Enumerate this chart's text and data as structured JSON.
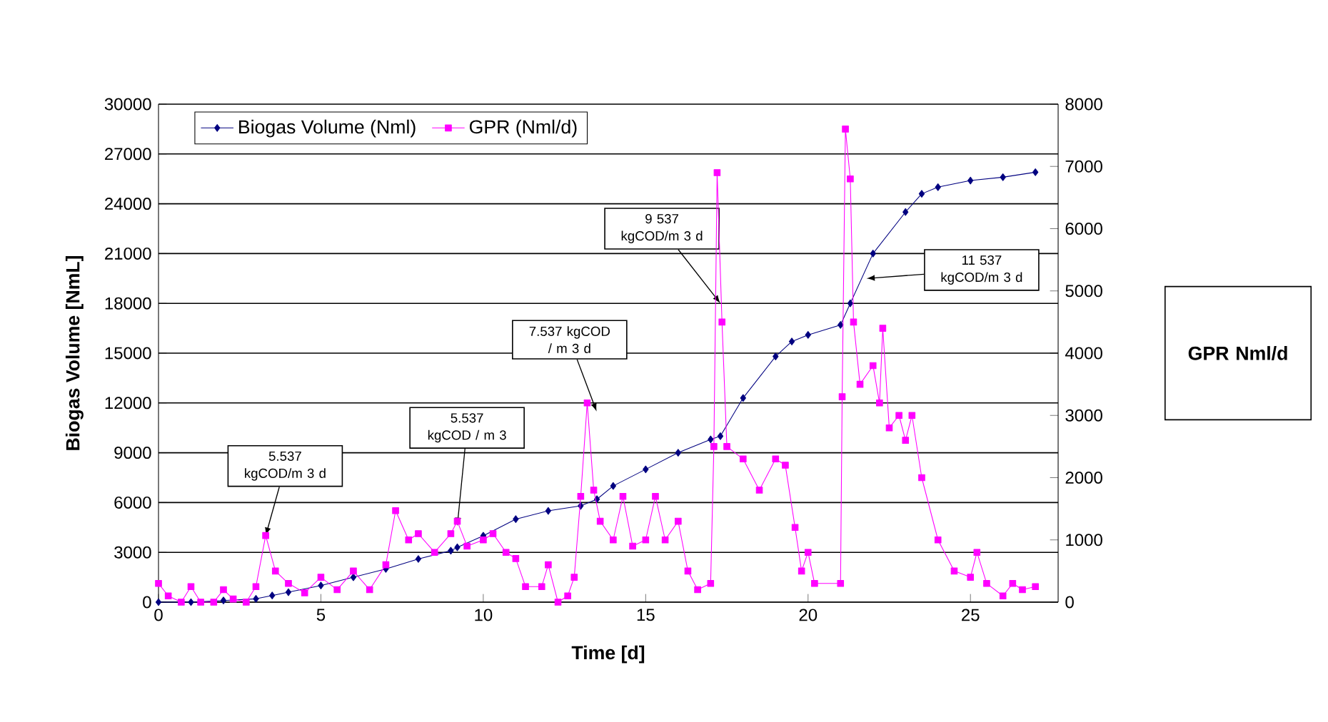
{
  "chart_data": {
    "type": "line",
    "xlabel": "Time [d]",
    "ylabel": "Biogas Volume [NmL]",
    "y2label": "GPR Nml/d",
    "xlim": [
      0,
      27.7
    ],
    "xticks": [
      0,
      5,
      10,
      15,
      20,
      25
    ],
    "ylim": [
      0,
      30000
    ],
    "yticks": [
      0,
      3000,
      6000,
      9000,
      12000,
      15000,
      18000,
      21000,
      24000,
      27000,
      30000
    ],
    "y2lim": [
      0,
      8000
    ],
    "y2ticks": [
      0,
      1000,
      2000,
      3000,
      4000,
      5000,
      6000,
      7000,
      8000
    ],
    "grid": "y",
    "legend": "top left",
    "series": [
      {
        "name": "Biogas Volume (Nml)",
        "color": "#000080",
        "marker": "diamond",
        "x": [
          0,
          1,
          2,
          3,
          3.5,
          4,
          5,
          6,
          7,
          8,
          9,
          9.2,
          10,
          11,
          12,
          13,
          13.5,
          14,
          15,
          16,
          17,
          17.3,
          18,
          19,
          19.5,
          20,
          21,
          21.3,
          22,
          23,
          23.5,
          24,
          25,
          26,
          27
        ],
        "values": [
          0,
          0,
          100,
          200,
          400,
          600,
          1000,
          1500,
          2000,
          2600,
          3100,
          3300,
          4000,
          5000,
          5500,
          5800,
          6200,
          7000,
          8000,
          9000,
          9800,
          10000,
          12300,
          14800,
          15700,
          16100,
          16700,
          18000,
          21000,
          23500,
          24600,
          25000,
          25400,
          25600,
          25900
        ]
      },
      {
        "name": "GPR (Nml/d)",
        "color": "#ff00ff",
        "marker": "square",
        "axis": "y2",
        "x": [
          0,
          0.3,
          0.7,
          1,
          1.3,
          1.7,
          2,
          2.3,
          2.7,
          3,
          3.3,
          3.6,
          4,
          4.5,
          5,
          5.5,
          6,
          6.5,
          7,
          7.3,
          7.7,
          8,
          8.5,
          9,
          9.2,
          9.5,
          10,
          10.3,
          10.7,
          11,
          11.3,
          11.8,
          12,
          12.3,
          12.6,
          12.8,
          13,
          13.2,
          13.4,
          13.6,
          14,
          14.3,
          14.6,
          15,
          15.3,
          15.6,
          16,
          16.3,
          16.6,
          17,
          17.1,
          17.2,
          17.35,
          17.5,
          18,
          18.5,
          19,
          19.3,
          19.6,
          19.8,
          20,
          20.2,
          21,
          21.05,
          21.15,
          21.3,
          21.4,
          21.6,
          22,
          22.2,
          22.3,
          22.5,
          22.8,
          23,
          23.2,
          23.5,
          24,
          24.5,
          25,
          25.2,
          25.5,
          26,
          26.3,
          26.6,
          27
        ],
        "values": [
          300,
          100,
          0,
          250,
          0,
          0,
          200,
          50,
          0,
          250,
          1070,
          500,
          300,
          150,
          400,
          200,
          500,
          200,
          600,
          1470,
          1000,
          1100,
          800,
          1100,
          1300,
          900,
          1000,
          1100,
          800,
          700,
          250,
          250,
          600,
          0,
          100,
          400,
          1700,
          3200,
          1800,
          1300,
          1000,
          1700,
          900,
          1000,
          1700,
          1000,
          1300,
          500,
          200,
          300,
          2500,
          6900,
          4500,
          2500,
          2300,
          1800,
          2300,
          2200,
          1200,
          500,
          800,
          300,
          300,
          3300,
          7600,
          6800,
          4500,
          3500,
          3800,
          3200,
          4400,
          2800,
          3000,
          2600,
          3000,
          2000,
          1000,
          500,
          400,
          800,
          300,
          100,
          300,
          200,
          250
        ]
      }
    ],
    "annotations": [
      {
        "text": "5.537 kgCOD/m 3 d",
        "x": 3.3,
        "y": 4000
      },
      {
        "text": "5.537 kgCOD / m 3",
        "x": 9.2,
        "y": 4600
      },
      "7.537 kgCOD / m 3 d",
      {
        "text": "9 537 kgCOD/m 3 d",
        "x": 17.3,
        "y": 18000
      },
      "11 537 kgCOD/m 3 d"
    ]
  }
}
